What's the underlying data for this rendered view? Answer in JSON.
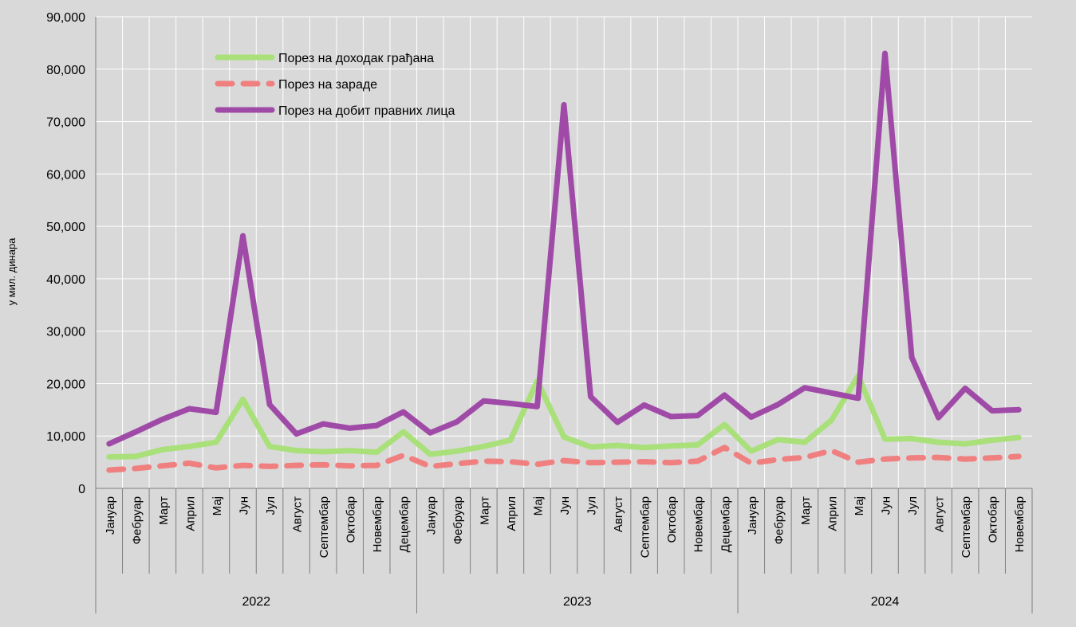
{
  "chart_data": {
    "type": "line",
    "ylabel": "у мил. динара",
    "ylim": [
      0,
      90000
    ],
    "y_ticks": [
      "0",
      "10,000",
      "20,000",
      "30,000",
      "40,000",
      "50,000",
      "60,000",
      "70,000",
      "80,000",
      "90,000"
    ],
    "grid": true,
    "legend_position": "top-left",
    "months": [
      "Јануар",
      "Фебруар",
      "Март",
      "Април",
      "Мај",
      "Јун",
      "Јул",
      "Август",
      "Септембар",
      "Октобар",
      "Новембар",
      "Децембар",
      "Јануар",
      "Фебруар",
      "Март",
      "Април",
      "Мај",
      "Јун",
      "Јул",
      "Август",
      "Септембар",
      "Октобар",
      "Новембар",
      "Децембар",
      "Јануар",
      "Фебруар",
      "Март",
      "Април",
      "Мај",
      "Јун",
      "Јул",
      "Август",
      "Септембар",
      "Октобар",
      "Новембар"
    ],
    "years": [
      {
        "label": "2022",
        "count": 12
      },
      {
        "label": "2023",
        "count": 12
      },
      {
        "label": "2024",
        "count": 11
      }
    ],
    "series": [
      {
        "name": "Порез на доходак грађана",
        "color": "#a9e07a",
        "style": "solid",
        "values": [
          6000,
          6100,
          7400,
          8000,
          8800,
          17000,
          8000,
          7200,
          7000,
          7200,
          6900,
          10800,
          6500,
          7100,
          8000,
          9200,
          20500,
          9800,
          7900,
          8200,
          7800,
          8100,
          8300,
          12200,
          7100,
          9300,
          8800,
          13000,
          21500,
          9400,
          9500,
          8800,
          8500,
          9200,
          9700
        ]
      },
      {
        "name": "Порез на зараде",
        "color": "#f08080",
        "style": "dashed",
        "values": [
          3500,
          3800,
          4300,
          4800,
          3900,
          4400,
          4200,
          4400,
          4500,
          4300,
          4400,
          6300,
          4200,
          4700,
          5200,
          5100,
          4600,
          5300,
          4900,
          5000,
          5100,
          4900,
          5200,
          7800,
          4800,
          5500,
          5900,
          7200,
          5000,
          5600,
          5800,
          5900,
          5600,
          5800,
          6100
        ]
      },
      {
        "name": "Порез на добит правних лица",
        "color": "#a04aa8",
        "style": "solid",
        "values": [
          8500,
          10800,
          13200,
          15200,
          14500,
          48200,
          16000,
          10400,
          12300,
          11500,
          12000,
          14600,
          10600,
          12700,
          16700,
          16200,
          15600,
          73200,
          17500,
          12600,
          15900,
          13700,
          13900,
          17800,
          13600,
          16000,
          19200,
          18200,
          17200,
          83000,
          25000,
          13500,
          19100,
          14800,
          15000
        ]
      }
    ]
  }
}
